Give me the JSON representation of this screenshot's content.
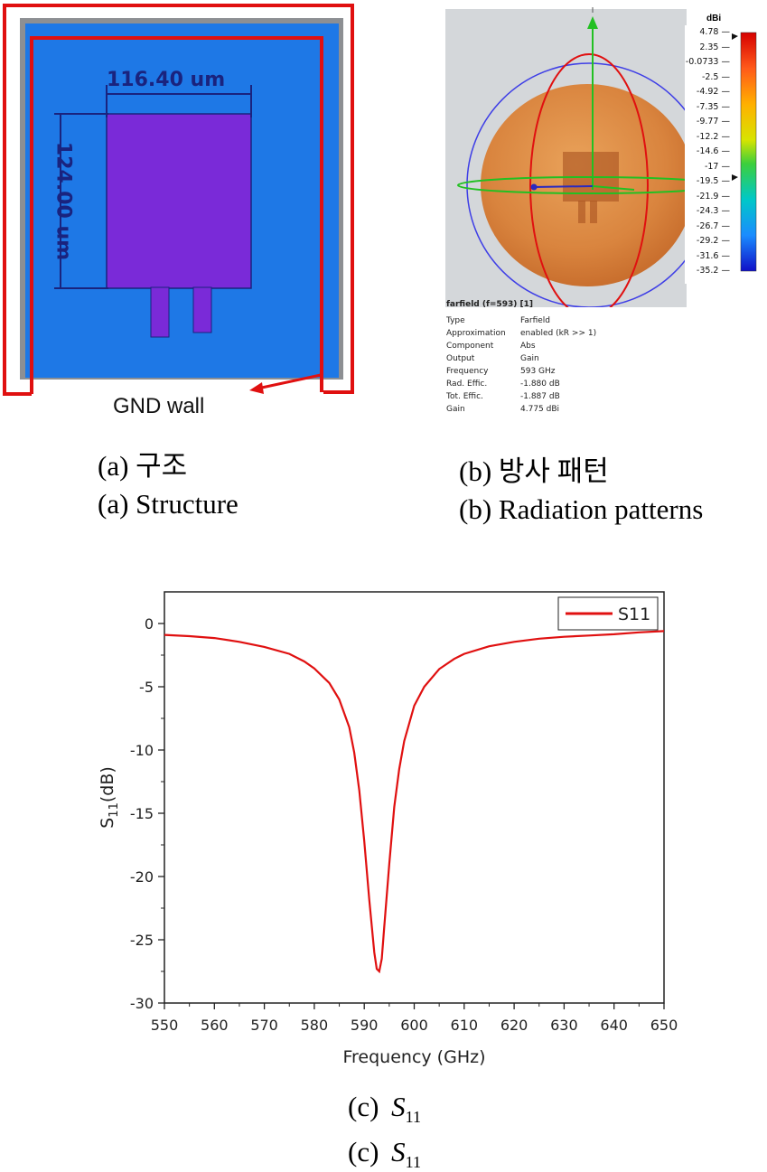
{
  "figure_a": {
    "dim_width": "116.40 um",
    "dim_height": "124.00 um",
    "gnd_label": "GND wall",
    "caption_ko": "(a)  구조",
    "caption_en": "(a)  Structure"
  },
  "figure_b": {
    "colorbar_unit": "dBi",
    "colorbar_ticks": [
      "4.78",
      "2.35",
      "-0.0733",
      "-2.5",
      "-4.92",
      "-7.35",
      "-9.77",
      "-12.2",
      "-14.6",
      "-17",
      "-19.5",
      "-21.9",
      "-24.3",
      "-26.7",
      "-29.2",
      "-31.6",
      "-35.2"
    ],
    "farfield_header": "farfield (f=593) [1]",
    "farfield_rows": [
      {
        "key": "Type",
        "value": "Farfield"
      },
      {
        "key": "Approximation",
        "value": "enabled (kR >> 1)"
      },
      {
        "key": "Component",
        "value": "Abs"
      },
      {
        "key": "Output",
        "value": "Gain"
      },
      {
        "key": "Frequency",
        "value": "593 GHz"
      },
      {
        "key": "Rad. Effic.",
        "value": "-1.880 dB"
      },
      {
        "key": "Tot. Effic.",
        "value": "-1.887 dB"
      },
      {
        "key": "Gain",
        "value": "4.775 dBi"
      }
    ],
    "caption_ko": "(b)  방사 패턴",
    "caption_en": "(b)  Radiation  patterns"
  },
  "figure_c": {
    "caption_1": "(c)",
    "caption_2": "(c)",
    "caption_sym": "S",
    "caption_sub": "11"
  },
  "colors": {
    "substrate": "#1e78e6",
    "patch": "#7a2ad8",
    "gnd_wall": "#e01010",
    "dimension": "#1a237e",
    "curve": "#e01010"
  },
  "chart_data": {
    "type": "line",
    "xlabel": "Frequency (GHz)",
    "ylabel_main": "S",
    "ylabel_sub": "11",
    "ylabel_unit": "(dB)",
    "xlim": [
      550,
      650
    ],
    "ylim": [
      -30,
      2.5
    ],
    "xticks": [
      550,
      560,
      570,
      580,
      590,
      600,
      610,
      620,
      630,
      640,
      650
    ],
    "yticks": [
      0,
      -5,
      -10,
      -15,
      -20,
      -25,
      -30
    ],
    "grid": false,
    "legend_position": "top-right",
    "series": [
      {
        "name": "S11",
        "color": "#e01010",
        "x": [
          550,
          555,
          560,
          565,
          570,
          575,
          578,
          580,
          583,
          585,
          587,
          588,
          589,
          590,
          591,
          592,
          592.5,
          593,
          593.5,
          594,
          595,
          596,
          597,
          598,
          600,
          602,
          605,
          608,
          610,
          615,
          620,
          625,
          630,
          635,
          640,
          645,
          650
        ],
        "y": [
          -0.9,
          -1.0,
          -1.15,
          -1.45,
          -1.85,
          -2.4,
          -3.0,
          -3.55,
          -4.7,
          -6.0,
          -8.2,
          -10.2,
          -13.2,
          -17.2,
          -21.8,
          -26.0,
          -27.3,
          -27.5,
          -26.5,
          -24.0,
          -19.0,
          -14.5,
          -11.5,
          -9.3,
          -6.5,
          -5.0,
          -3.6,
          -2.8,
          -2.4,
          -1.8,
          -1.45,
          -1.2,
          -1.05,
          -0.95,
          -0.85,
          -0.7,
          -0.6
        ]
      }
    ]
  }
}
